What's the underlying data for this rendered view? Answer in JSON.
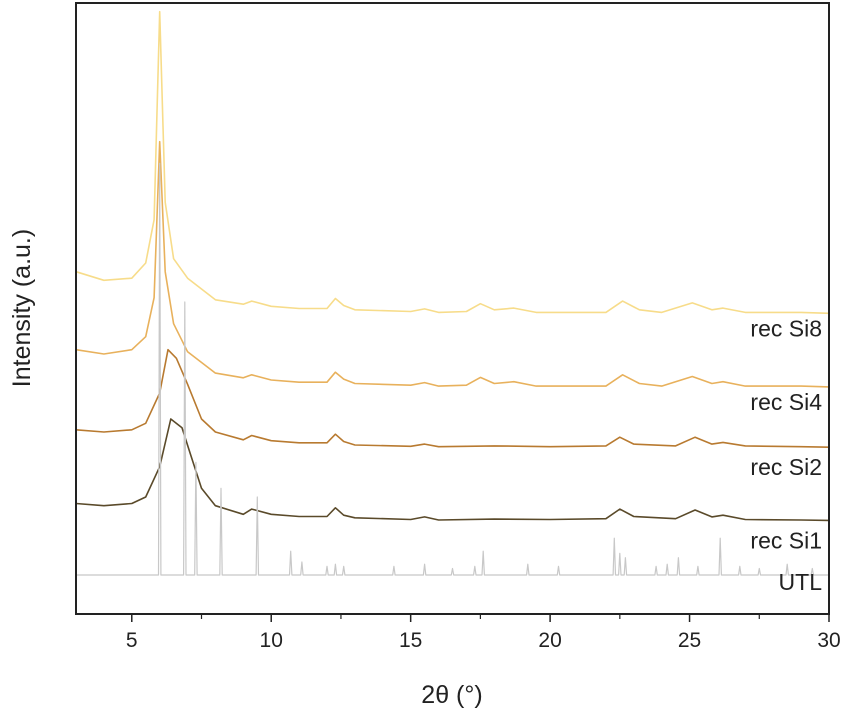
{
  "chart_data": {
    "type": "line",
    "xlabel": "2θ (°)",
    "ylabel": "Intensity (a.u.)",
    "xlim": [
      3,
      30
    ],
    "x_ticks": [
      5,
      10,
      15,
      20,
      25,
      30
    ],
    "grid": false,
    "legend": "inline labels on right",
    "series": [
      {
        "name": "rec Si8",
        "color": "#f7dc8a",
        "baseline": 0.62,
        "points": [
          [
            3.0,
            0.7
          ],
          [
            4.0,
            0.68
          ],
          [
            5.0,
            0.685
          ],
          [
            5.5,
            0.72
          ],
          [
            5.8,
            0.82
          ],
          [
            6.0,
            1.3
          ],
          [
            6.2,
            0.86
          ],
          [
            6.5,
            0.73
          ],
          [
            7.0,
            0.685
          ],
          [
            8.0,
            0.635
          ],
          [
            9.0,
            0.625
          ],
          [
            9.3,
            0.632
          ],
          [
            10.0,
            0.62
          ],
          [
            11.0,
            0.615
          ],
          [
            12.0,
            0.615
          ],
          [
            12.3,
            0.638
          ],
          [
            12.6,
            0.622
          ],
          [
            13.0,
            0.612
          ],
          [
            15.0,
            0.608
          ],
          [
            15.5,
            0.614
          ],
          [
            16.0,
            0.606
          ],
          [
            17.0,
            0.608
          ],
          [
            17.5,
            0.626
          ],
          [
            18.0,
            0.612
          ],
          [
            18.7,
            0.616
          ],
          [
            19.5,
            0.606
          ],
          [
            22.0,
            0.606
          ],
          [
            22.6,
            0.632
          ],
          [
            23.2,
            0.612
          ],
          [
            24.0,
            0.606
          ],
          [
            25.1,
            0.628
          ],
          [
            25.8,
            0.612
          ],
          [
            26.2,
            0.616
          ],
          [
            27.0,
            0.606
          ],
          [
            29.0,
            0.606
          ],
          [
            30.0,
            0.604
          ]
        ]
      },
      {
        "name": "rec Si4",
        "color": "#e8b15c",
        "baseline": 0.45,
        "points": [
          [
            3.0,
            0.52
          ],
          [
            4.0,
            0.51
          ],
          [
            5.0,
            0.52
          ],
          [
            5.5,
            0.55
          ],
          [
            5.8,
            0.64
          ],
          [
            6.0,
            1.0
          ],
          [
            6.2,
            0.7
          ],
          [
            6.5,
            0.58
          ],
          [
            7.0,
            0.515
          ],
          [
            8.0,
            0.466
          ],
          [
            9.0,
            0.455
          ],
          [
            9.3,
            0.462
          ],
          [
            10.0,
            0.45
          ],
          [
            11.0,
            0.445
          ],
          [
            12.0,
            0.445
          ],
          [
            12.3,
            0.468
          ],
          [
            12.6,
            0.452
          ],
          [
            13.0,
            0.442
          ],
          [
            15.0,
            0.438
          ],
          [
            15.5,
            0.444
          ],
          [
            16.0,
            0.436
          ],
          [
            17.0,
            0.438
          ],
          [
            17.5,
            0.456
          ],
          [
            18.0,
            0.442
          ],
          [
            18.7,
            0.446
          ],
          [
            19.5,
            0.436
          ],
          [
            22.0,
            0.436
          ],
          [
            22.6,
            0.462
          ],
          [
            23.2,
            0.442
          ],
          [
            24.0,
            0.436
          ],
          [
            25.1,
            0.458
          ],
          [
            25.8,
            0.442
          ],
          [
            26.2,
            0.446
          ],
          [
            27.0,
            0.436
          ],
          [
            29.0,
            0.436
          ],
          [
            30.0,
            0.434
          ]
        ]
      },
      {
        "name": "rec Si2",
        "color": "#b87a30",
        "baseline": 0.3,
        "points": [
          [
            3.0,
            0.335
          ],
          [
            4.0,
            0.33
          ],
          [
            5.0,
            0.335
          ],
          [
            5.5,
            0.35
          ],
          [
            6.0,
            0.42
          ],
          [
            6.3,
            0.52
          ],
          [
            6.6,
            0.5
          ],
          [
            7.0,
            0.44
          ],
          [
            7.5,
            0.36
          ],
          [
            8.0,
            0.33
          ],
          [
            9.0,
            0.312
          ],
          [
            9.3,
            0.322
          ],
          [
            10.0,
            0.31
          ],
          [
            11.0,
            0.305
          ],
          [
            12.0,
            0.305
          ],
          [
            12.3,
            0.325
          ],
          [
            12.6,
            0.308
          ],
          [
            13.0,
            0.3
          ],
          [
            15.0,
            0.297
          ],
          [
            15.5,
            0.302
          ],
          [
            16.0,
            0.296
          ],
          [
            18.0,
            0.298
          ],
          [
            20.0,
            0.296
          ],
          [
            22.0,
            0.298
          ],
          [
            22.5,
            0.318
          ],
          [
            23.0,
            0.302
          ],
          [
            24.5,
            0.298
          ],
          [
            25.2,
            0.318
          ],
          [
            25.8,
            0.302
          ],
          [
            26.2,
            0.306
          ],
          [
            27.0,
            0.298
          ],
          [
            29.0,
            0.296
          ],
          [
            30.0,
            0.295
          ]
        ]
      },
      {
        "name": "rec Si1",
        "color": "#5a4a2a",
        "baseline": 0.13,
        "points": [
          [
            3.0,
            0.165
          ],
          [
            4.0,
            0.16
          ],
          [
            5.0,
            0.165
          ],
          [
            5.5,
            0.18
          ],
          [
            6.0,
            0.25
          ],
          [
            6.4,
            0.36
          ],
          [
            6.8,
            0.34
          ],
          [
            7.1,
            0.28
          ],
          [
            7.5,
            0.2
          ],
          [
            8.0,
            0.16
          ],
          [
            9.0,
            0.14
          ],
          [
            9.3,
            0.152
          ],
          [
            10.0,
            0.14
          ],
          [
            11.0,
            0.135
          ],
          [
            12.0,
            0.135
          ],
          [
            12.3,
            0.155
          ],
          [
            12.6,
            0.138
          ],
          [
            13.0,
            0.132
          ],
          [
            15.0,
            0.128
          ],
          [
            15.5,
            0.134
          ],
          [
            16.0,
            0.127
          ],
          [
            18.0,
            0.129
          ],
          [
            20.0,
            0.128
          ],
          [
            22.0,
            0.13
          ],
          [
            22.5,
            0.152
          ],
          [
            23.0,
            0.135
          ],
          [
            24.5,
            0.13
          ],
          [
            25.2,
            0.15
          ],
          [
            25.8,
            0.134
          ],
          [
            26.2,
            0.138
          ],
          [
            27.0,
            0.128
          ],
          [
            29.0,
            0.127
          ],
          [
            30.0,
            0.126
          ]
        ]
      },
      {
        "name": "UTL",
        "color": "#c8c8c8",
        "type": "stick",
        "baseline": 0.0,
        "peaks": [
          [
            6.0,
            0.95
          ],
          [
            6.9,
            0.63
          ],
          [
            7.3,
            0.26
          ],
          [
            8.2,
            0.2
          ],
          [
            9.5,
            0.18
          ],
          [
            10.7,
            0.055
          ],
          [
            11.1,
            0.03
          ],
          [
            12.0,
            0.02
          ],
          [
            12.3,
            0.025
          ],
          [
            12.6,
            0.02
          ],
          [
            14.4,
            0.02
          ],
          [
            15.5,
            0.025
          ],
          [
            16.5,
            0.015
          ],
          [
            17.6,
            0.055
          ],
          [
            17.3,
            0.02
          ],
          [
            19.2,
            0.025
          ],
          [
            20.3,
            0.02
          ],
          [
            22.3,
            0.085
          ],
          [
            22.5,
            0.05
          ],
          [
            22.7,
            0.04
          ],
          [
            23.8,
            0.02
          ],
          [
            24.2,
            0.025
          ],
          [
            24.6,
            0.04
          ],
          [
            25.3,
            0.02
          ],
          [
            26.1,
            0.085
          ],
          [
            26.8,
            0.02
          ],
          [
            27.5,
            0.015
          ],
          [
            28.5,
            0.025
          ],
          [
            29.4,
            0.015
          ]
        ]
      }
    ]
  }
}
